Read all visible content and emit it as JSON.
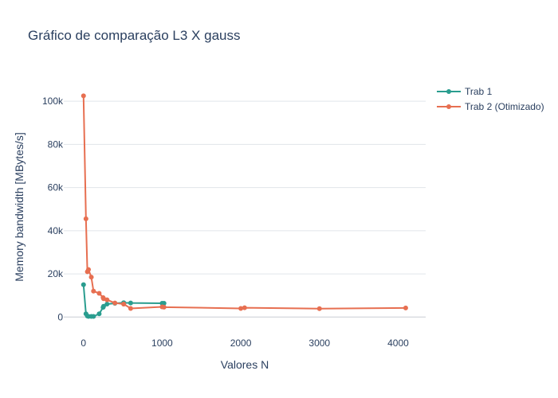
{
  "chart_data": {
    "type": "line",
    "title": "Gráfico de comparação L3 X gauss",
    "xlabel": "Valores N",
    "ylabel": "Memory bandwidth [MBytes/s]",
    "xlim": [
      -250,
      4350
    ],
    "ylim": [
      -8000,
      110000
    ],
    "x_ticks": [
      0,
      1000,
      2000,
      3000,
      4000
    ],
    "x_tick_labels": [
      "0",
      "1000",
      "2000",
      "3000",
      "4000"
    ],
    "y_ticks": [
      0,
      20000,
      40000,
      60000,
      80000,
      100000
    ],
    "y_tick_labels": [
      "0",
      "20k",
      "40k",
      "60k",
      "80k",
      "100k"
    ],
    "grid": "horizontal",
    "legend_position": "top-right",
    "series": [
      {
        "name": "Trab 1",
        "color": "#2a9d8f",
        "x": [
          1,
          32,
          50,
          64,
          100,
          128,
          200,
          250,
          256,
          300,
          400,
          511,
          512,
          600,
          1000,
          1024
        ],
        "y": [
          15000,
          1500,
          500,
          300,
          300,
          300,
          1500,
          4500,
          5000,
          6000,
          6400,
          6600,
          6600,
          6500,
          6400,
          6400
        ]
      },
      {
        "name": "Trab 2 (Otimizado)",
        "color": "#e76f51",
        "x": [
          1,
          32,
          50,
          64,
          100,
          128,
          200,
          250,
          256,
          300,
          400,
          511,
          512,
          600,
          1000,
          1024,
          2000,
          2048,
          3000,
          4096
        ],
        "y": [
          102500,
          45500,
          21000,
          22000,
          18500,
          12000,
          11000,
          9000,
          8500,
          8000,
          6500,
          6000,
          6000,
          4000,
          4700,
          4600,
          4000,
          4300,
          3900,
          4200
        ]
      }
    ]
  }
}
